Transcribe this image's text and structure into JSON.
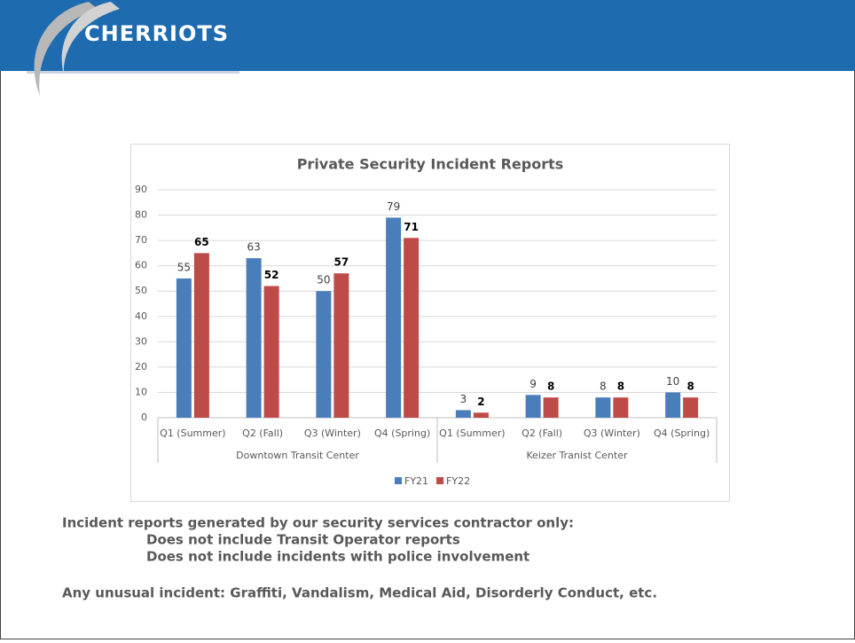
{
  "header": {
    "logo": "CHERRIOTS"
  },
  "chart_data": {
    "type": "bar",
    "title": "Private Security Incident Reports",
    "categories": [
      "Q1 (Summer)",
      "Q2 (Fall)",
      "Q3 (Winter)",
      "Q4 (Spring)",
      "Q1 (Summer)",
      "Q2 (Fall)",
      "Q3 (Winter)",
      "Q4 (Spring)"
    ],
    "groups": [
      "Downtown Transit Center",
      "Keizer Tranist Center"
    ],
    "series": [
      {
        "name": "FY21",
        "color": "#4a7ebb",
        "label_bold": false,
        "values": [
          55,
          63,
          50,
          79,
          3,
          9,
          8,
          10
        ]
      },
      {
        "name": "FY22",
        "color": "#be4b48",
        "label_bold": true,
        "values": [
          65,
          52,
          57,
          71,
          2,
          8,
          8,
          8
        ]
      }
    ],
    "ylim": [
      0,
      90
    ],
    "yticks": [
      0,
      10,
      20,
      30,
      40,
      50,
      60,
      70,
      80,
      90
    ],
    "grid": true,
    "legend": "bottom"
  },
  "notes": {
    "line1": "Incident reports generated by our security services contractor only:",
    "bullets": [
      "Does not include Transit Operator reports",
      "Does not include incidents with police involvement"
    ],
    "line2": "Any unusual incident: Graffiti, Vandalism, Medical Aid, Disorderly Conduct, etc."
  }
}
